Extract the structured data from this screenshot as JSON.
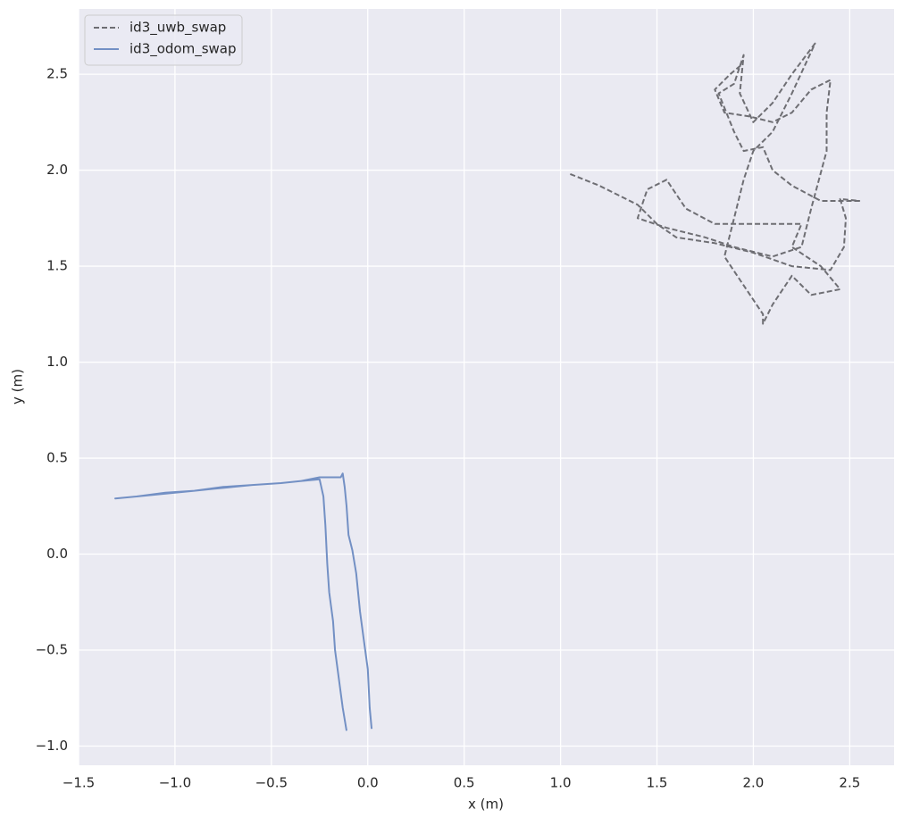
{
  "chart_data": {
    "type": "line",
    "xlabel": "x (m)",
    "ylabel": "y (m)",
    "xlim": [
      -1.5,
      2.73
    ],
    "ylim": [
      -1.1,
      2.84
    ],
    "xticks": [
      {
        "value": -1.5,
        "label": "−1.5"
      },
      {
        "value": -1.0,
        "label": "−1.0"
      },
      {
        "value": -0.5,
        "label": "−0.5"
      },
      {
        "value": 0,
        "label": "0.0"
      },
      0.5,
      {
        "value": 1,
        "label": "1.0"
      },
      1.5,
      {
        "value": 2,
        "label": "2.0"
      },
      2.5
    ],
    "yticks": [
      {
        "value": -1.0,
        "label": "−1.0"
      },
      {
        "value": -0.5,
        "label": "−0.5"
      },
      {
        "value": 0,
        "label": "0.0"
      },
      0.5,
      {
        "value": 1,
        "label": "1.0"
      },
      1.5,
      {
        "value": 2,
        "label": "2.0"
      },
      2.5
    ],
    "grid": true,
    "legend": "upper-left",
    "series": [
      {
        "name": "id3_uwb_swap",
        "color": "#6e6e73",
        "dashed": true,
        "x": [
          1.05,
          1.2,
          1.4,
          1.5,
          1.6,
          1.8,
          2.0,
          2.2,
          2.4,
          2.47,
          2.48,
          2.45,
          2.55,
          2.35,
          2.2,
          2.1,
          2.05,
          1.95,
          1.9,
          1.82,
          1.9,
          1.95,
          1.93,
          2.0,
          2.1,
          2.2,
          2.32,
          2.2,
          2.1,
          2.0,
          1.95,
          1.9,
          1.85,
          1.95,
          2.05,
          2.05,
          2.1,
          2.2,
          2.3,
          2.45,
          2.35,
          2.2,
          2.25,
          2.05,
          1.8,
          1.65,
          1.55,
          1.45,
          1.4,
          1.55,
          1.75,
          1.9,
          2.1,
          2.25,
          2.3,
          2.38,
          2.38,
          2.4,
          2.3,
          2.2,
          2.1,
          1.98,
          1.85,
          1.8,
          1.88,
          1.94
        ],
        "values": [
          1.98,
          1.92,
          1.82,
          1.72,
          1.65,
          1.62,
          1.57,
          1.5,
          1.48,
          1.6,
          1.75,
          1.85,
          1.84,
          1.84,
          1.92,
          2.0,
          2.12,
          2.1,
          2.2,
          2.4,
          2.45,
          2.6,
          2.4,
          2.25,
          2.35,
          2.5,
          2.66,
          2.4,
          2.2,
          2.1,
          1.95,
          1.75,
          1.55,
          1.4,
          1.25,
          1.2,
          1.3,
          1.45,
          1.35,
          1.38,
          1.5,
          1.6,
          1.72,
          1.72,
          1.72,
          1.8,
          1.95,
          1.9,
          1.75,
          1.7,
          1.65,
          1.6,
          1.55,
          1.6,
          1.8,
          2.1,
          2.3,
          2.47,
          2.42,
          2.3,
          2.25,
          2.28,
          2.3,
          2.42,
          2.5,
          2.55
        ]
      },
      {
        "name": "id3_odom_swap",
        "color": "#7390c4",
        "dashed": false,
        "x": [
          0.02,
          0.01,
          0.0,
          -0.02,
          -0.04,
          -0.06,
          -0.08,
          -0.1,
          -0.11,
          -0.12,
          -0.13,
          -0.14,
          -0.2,
          -0.25,
          -0.35,
          -0.45,
          -0.6,
          -0.7,
          -0.8,
          -0.9,
          -1.0,
          -1.1,
          -1.2,
          -1.31,
          -1.2,
          -1.05,
          -0.9,
          -0.75,
          -0.6,
          -0.45,
          -0.35,
          -0.25,
          -0.23,
          -0.22,
          -0.21,
          -0.2,
          -0.18,
          -0.17,
          -0.15,
          -0.13,
          -0.11
        ],
        "values": [
          -0.91,
          -0.8,
          -0.6,
          -0.45,
          -0.3,
          -0.1,
          0.02,
          0.1,
          0.25,
          0.35,
          0.42,
          0.4,
          0.4,
          0.4,
          0.38,
          0.37,
          0.36,
          0.35,
          0.34,
          0.33,
          0.32,
          0.31,
          0.3,
          0.29,
          0.3,
          0.32,
          0.33,
          0.35,
          0.36,
          0.37,
          0.38,
          0.39,
          0.3,
          0.15,
          -0.05,
          -0.2,
          -0.35,
          -0.5,
          -0.65,
          -0.8,
          -0.92
        ]
      }
    ]
  }
}
